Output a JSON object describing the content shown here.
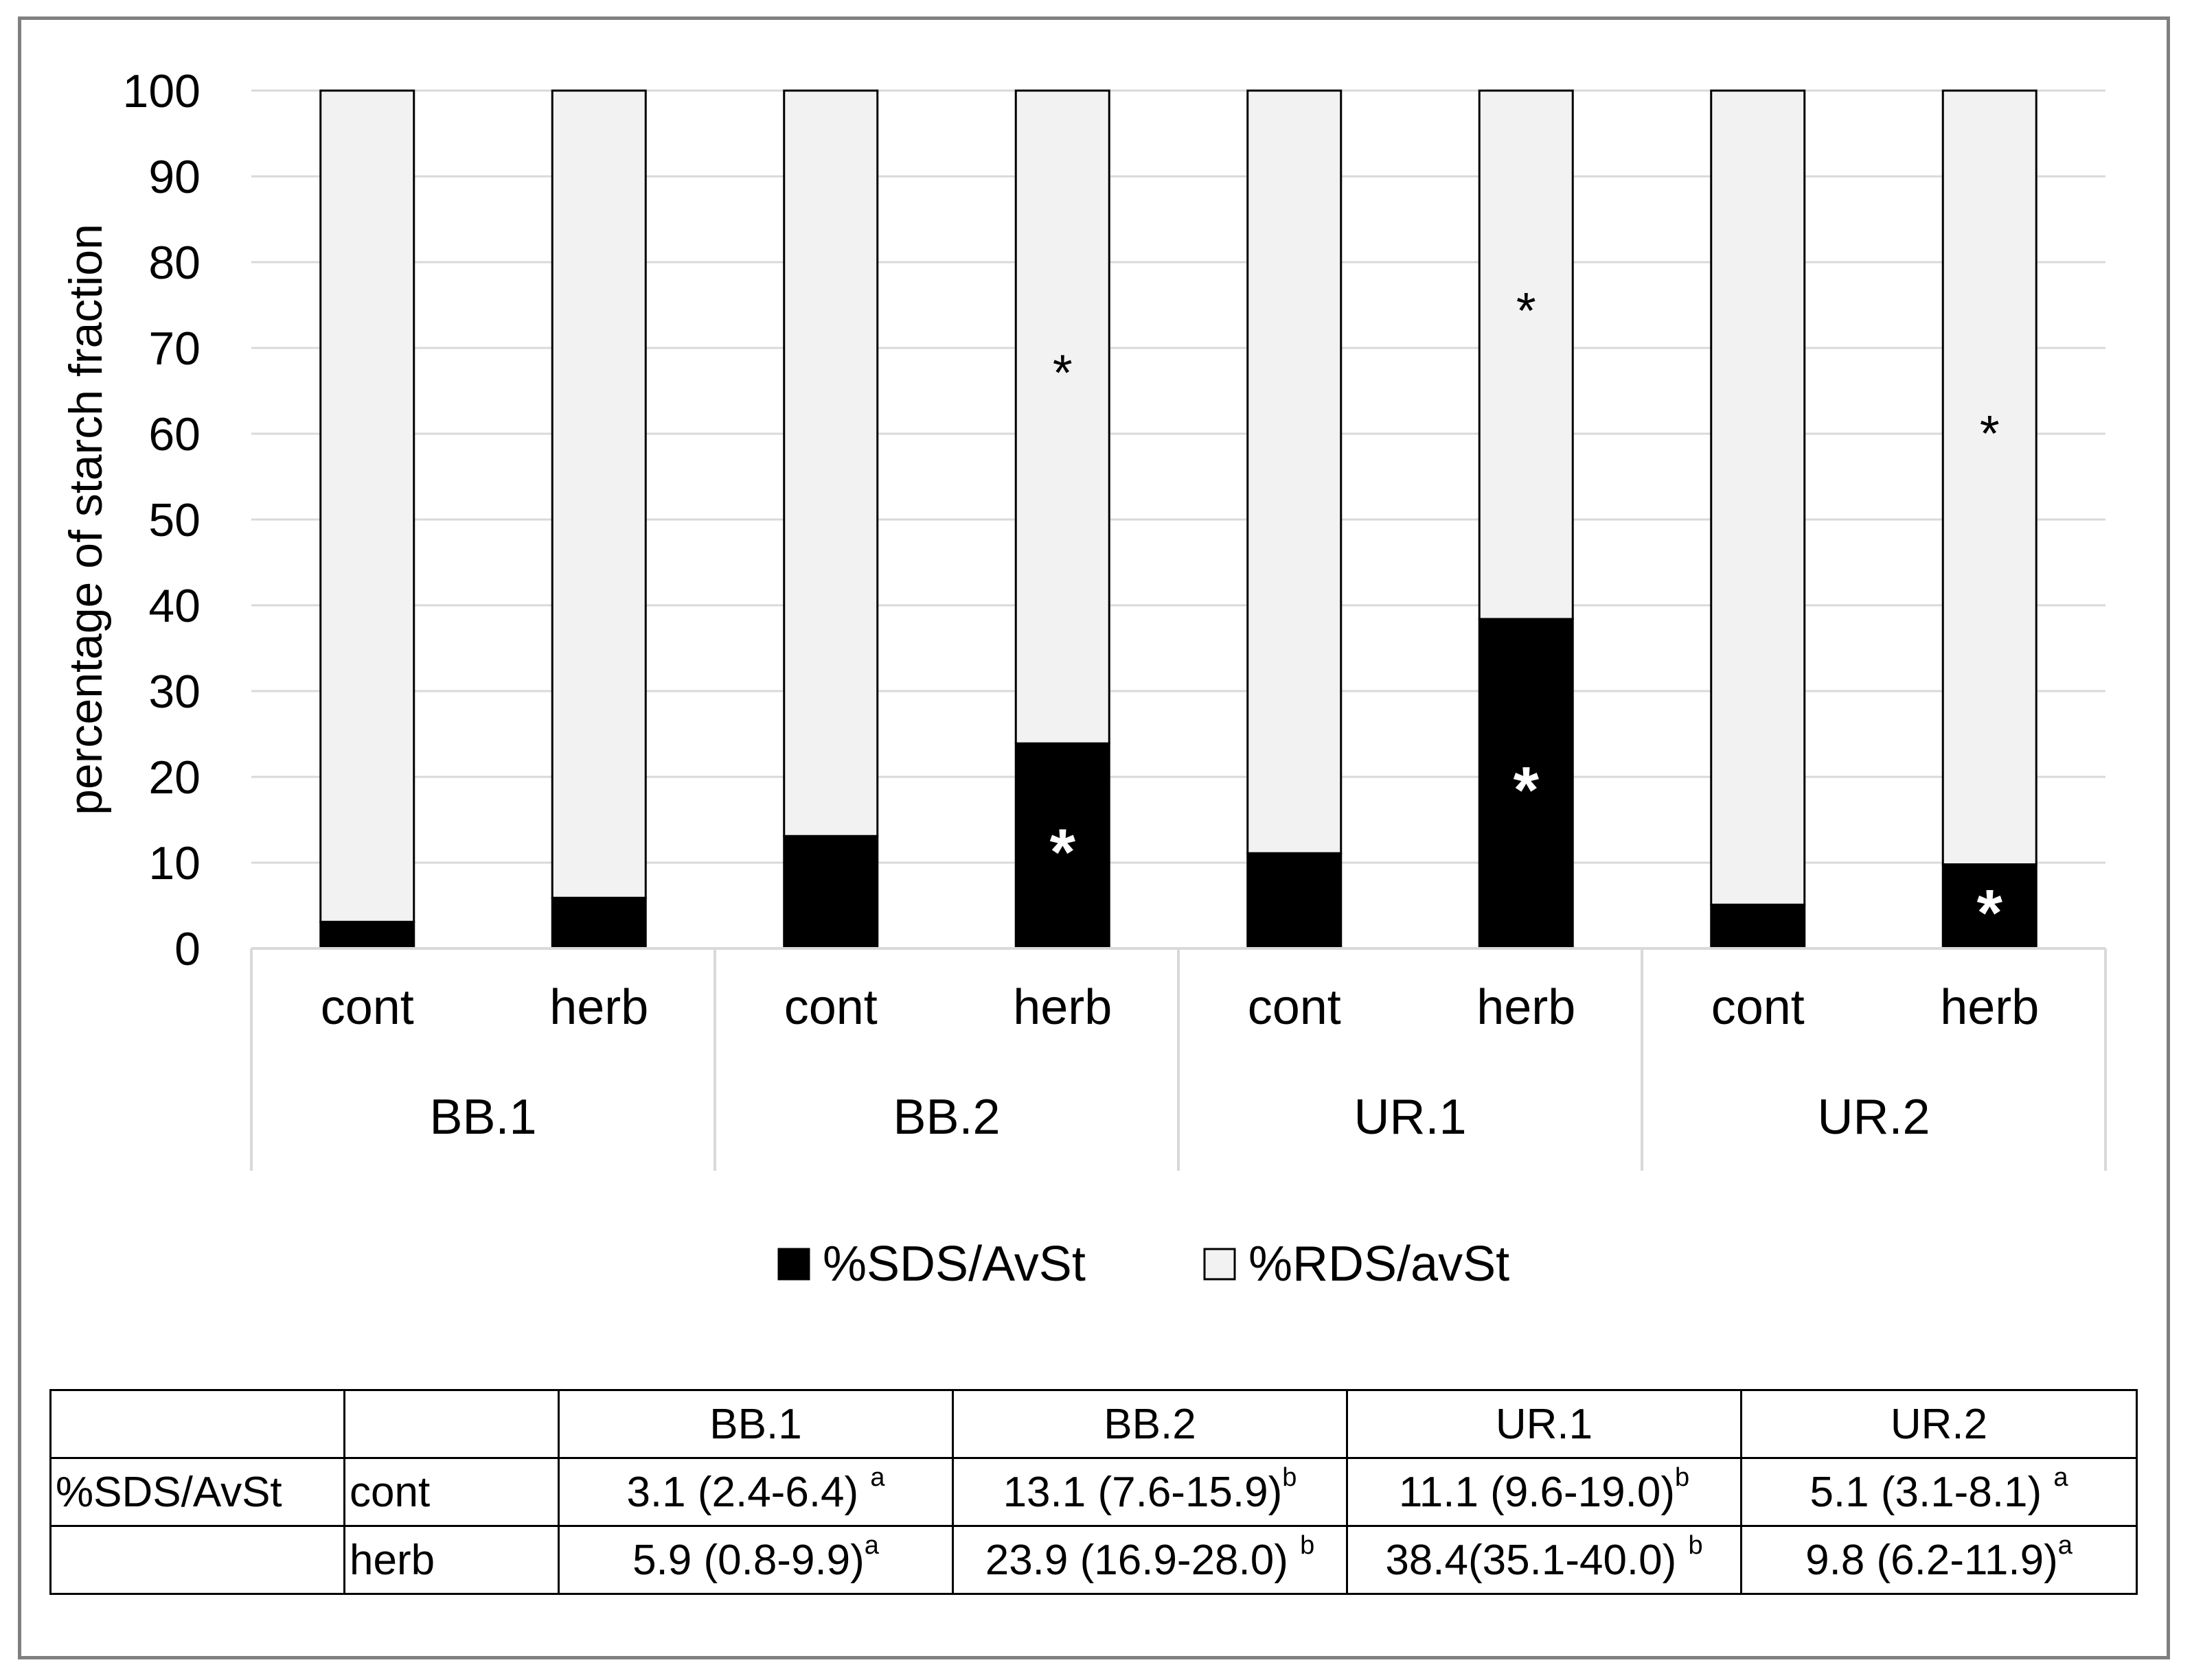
{
  "chart_data": {
    "type": "bar",
    "stacked": true,
    "ylabel": "percentage of starch fraction",
    "ylim": [
      0,
      100
    ],
    "yticks": [
      0,
      10,
      20,
      30,
      40,
      50,
      60,
      70,
      80,
      90,
      100
    ],
    "grid": true,
    "groups": [
      "BB.1",
      "BB.2",
      "UR.1",
      "UR.2"
    ],
    "categories": [
      "cont",
      "herb",
      "cont",
      "herb",
      "cont",
      "herb",
      "cont",
      "herb"
    ],
    "series": [
      {
        "name": "%SDS/AvSt",
        "color": "#000000",
        "values": [
          3.1,
          5.9,
          13.1,
          23.9,
          11.1,
          38.4,
          5.1,
          9.8
        ]
      },
      {
        "name": "%RDS/avSt",
        "color": "#f2f2f2",
        "values": [
          96.9,
          94.1,
          86.9,
          76.1,
          88.9,
          61.6,
          94.9,
          90.2
        ]
      }
    ],
    "significance": [
      {
        "bar": 3,
        "series": "%SDS/AvSt",
        "mark": "*"
      },
      {
        "bar": 3,
        "series": "%RDS/avSt",
        "mark": "*"
      },
      {
        "bar": 5,
        "series": "%SDS/AvSt",
        "mark": "*"
      },
      {
        "bar": 5,
        "series": "%RDS/avSt",
        "mark": "*"
      },
      {
        "bar": 7,
        "series": "%SDS/AvSt",
        "mark": "*"
      },
      {
        "bar": 7,
        "series": "%RDS/avSt",
        "mark": "*"
      }
    ],
    "legend_position": "bottom"
  },
  "table": {
    "headers": [
      "",
      "",
      "BB.1",
      "BB.2",
      "UR.1",
      "UR.2"
    ],
    "rows": [
      {
        "label": "%SDS/AvSt",
        "treatment": "cont",
        "cells": [
          {
            "text": "3.1 (2.4-6.4) ",
            "sup": "a"
          },
          {
            "text": "13.1 (7.6-15.9)",
            "sup": "b"
          },
          {
            "text": "11.1 (9.6-19.0)",
            "sup": "b"
          },
          {
            "text": "5.1 (3.1-8.1) ",
            "sup": "a"
          }
        ]
      },
      {
        "label": "",
        "treatment": "herb",
        "cells": [
          {
            "text": "5.9 (0.8-9.9)",
            "sup": "a"
          },
          {
            "text": "23.9 (16.9-28.0) ",
            "sup": "b"
          },
          {
            "text": "38.4(35.1-40.0) ",
            "sup": "b"
          },
          {
            "text": "9.8 (6.2-11.9)",
            "sup": "a"
          }
        ]
      }
    ]
  }
}
